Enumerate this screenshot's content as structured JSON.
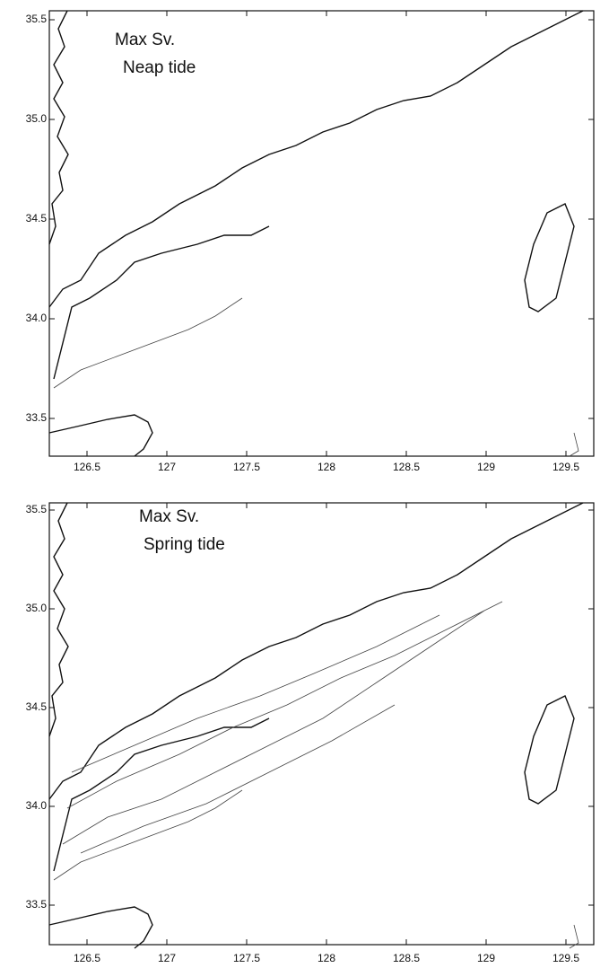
{
  "panels": [
    {
      "title_lines": [
        "Max Sv.",
        "Neap tide"
      ],
      "xtick_labels": [
        "126.5",
        "127",
        "127.5",
        "128",
        "128.5",
        "129",
        "129.5"
      ],
      "ytick_labels": [
        "35.5",
        "35.0",
        "34.5",
        "34.0",
        "33.5"
      ]
    },
    {
      "title_lines": [
        "Max Sv.",
        "Spring tide"
      ],
      "xtick_labels": [
        "126.5",
        "127",
        "127.5",
        "128",
        "128.5",
        "129",
        "129.5"
      ],
      "ytick_labels": [
        "35.5",
        "35.0",
        "34.5",
        "34.0",
        "33.5"
      ]
    }
  ]
}
